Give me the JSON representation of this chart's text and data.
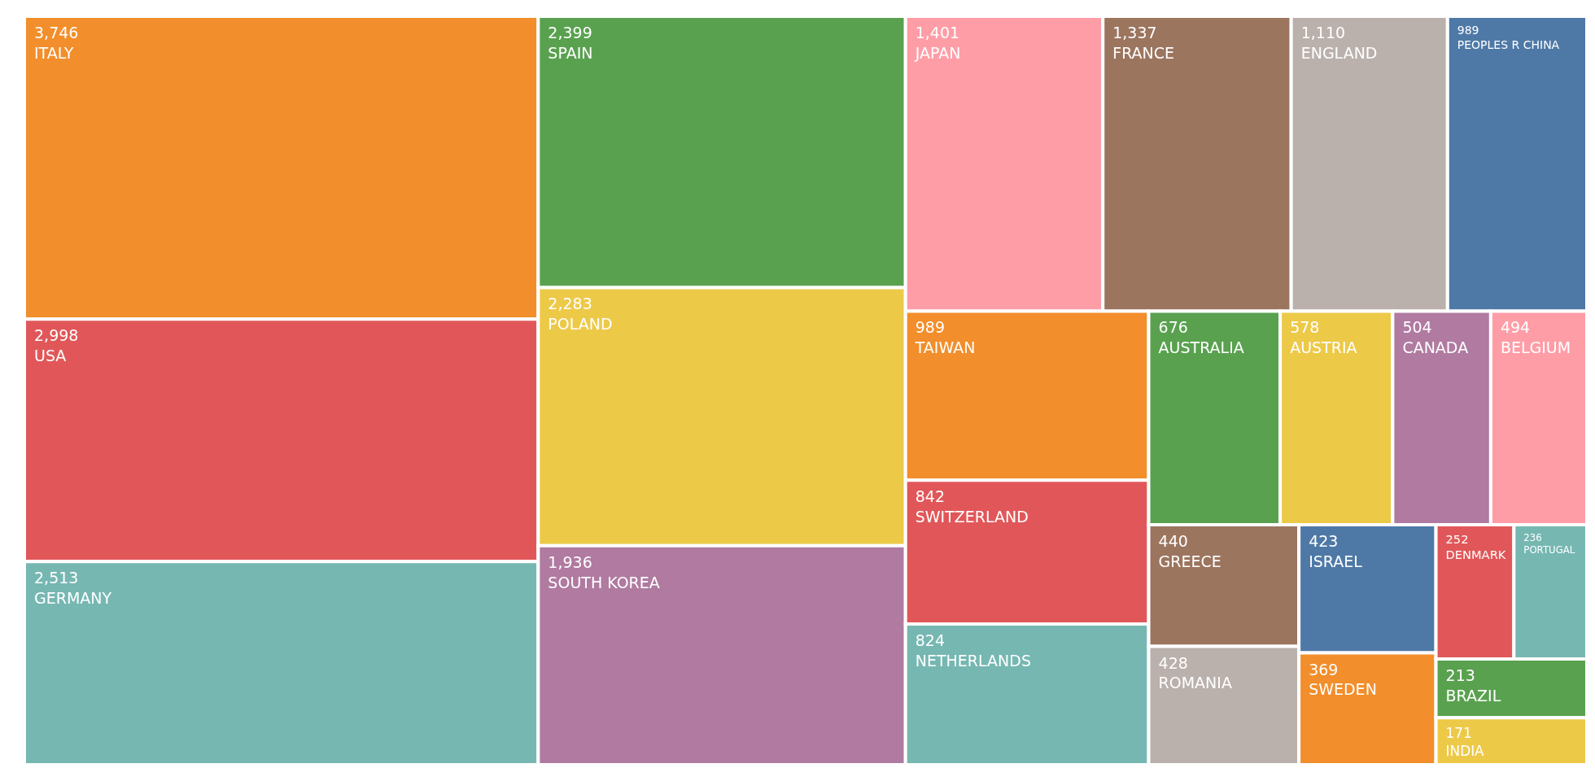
{
  "chart_data": {
    "type": "other",
    "value_labels": [
      "3,746",
      "2,998",
      "2,513",
      "2,399",
      "2,283",
      "1,936",
      "1,401",
      "1,337",
      "1,110",
      "989",
      "989",
      "842",
      "824",
      "676",
      "578",
      "504",
      "494",
      "440",
      "428",
      "423",
      "369",
      "252",
      "236",
      "213",
      "171"
    ],
    "categories": [
      "ITALY",
      "USA",
      "GERMANY",
      "SPAIN",
      "POLAND",
      "SOUTH KOREA",
      "JAPAN",
      "FRANCE",
      "ENGLAND",
      "PEOPLES R CHINA",
      "TAIWAN",
      "SWITZERLAND",
      "NETHERLANDS",
      "AUSTRALIA",
      "AUSTRIA",
      "CANADA",
      "BELGIUM",
      "GREECE",
      "ROMANIA",
      "ISRAEL",
      "SWEDEN",
      "DENMARK",
      "PORTUGAL",
      "BRAZIL",
      "INDIA"
    ],
    "values": [
      3746,
      2998,
      2513,
      2399,
      2283,
      1936,
      1401,
      1337,
      1110,
      989,
      989,
      842,
      824,
      676,
      578,
      504,
      494,
      440,
      428,
      423,
      369,
      252,
      236,
      213,
      171
    ],
    "colors": [
      "#f28e2b",
      "#e15759",
      "#76b7b2",
      "#59a14f",
      "#edc948",
      "#b07aa1",
      "#ff9da7",
      "#9c755f",
      "#bab0ac",
      "#4e79a7",
      "#f28e2b",
      "#e15759",
      "#76b7b2",
      "#59a14f",
      "#edc948",
      "#b07aa1",
      "#ff9da7",
      "#9c755f",
      "#bab0ac",
      "#4e79a7",
      "#f28e2b",
      "#e15759",
      "#76b7b2",
      "#59a14f",
      "#edc948"
    ]
  }
}
